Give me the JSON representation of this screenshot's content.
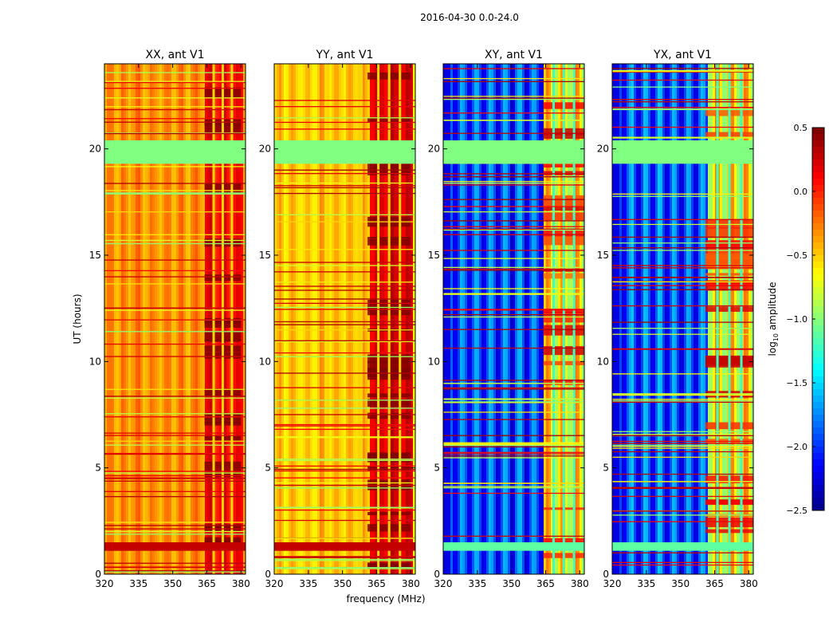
{
  "suptitle": "2016-04-30 0.0-24.0",
  "shared": {
    "ylabel": "UT (hours)",
    "xlabel": "frequency (MHz)",
    "x_ticks": [
      320,
      335,
      350,
      365,
      380
    ],
    "y_ticks": [
      0,
      5,
      10,
      15,
      20
    ],
    "colorbar_ticks": [
      "0.5",
      "0.0",
      "−0.5",
      "−1.0",
      "−1.5",
      "−2.0",
      "−2.5"
    ],
    "colorbar_label_main": "log",
    "colorbar_label_sub": "10",
    "colorbar_label_rest": " amplitude"
  },
  "chart_data": [
    {
      "type": "heatmap",
      "title": "XX, ant V1",
      "xlabel": "",
      "ylabel": "UT (hours)",
      "xlim": [
        320,
        382
      ],
      "ylim": [
        0,
        24
      ],
      "band_lo": 364,
      "band_hi": 380,
      "base_level": -0.3,
      "band_level": 0.1,
      "cross_pol": false,
      "colormap": "jet",
      "clim": [
        -2.5,
        0.5
      ],
      "flagged_ut": [
        [
          19.3,
          20.4
        ]
      ]
    },
    {
      "type": "heatmap",
      "title": "YY, ant V1",
      "xlabel": "frequency (MHz)",
      "ylabel": "",
      "xlim": [
        320,
        382
      ],
      "ylim": [
        0,
        24
      ],
      "band_lo": 361,
      "band_hi": 380,
      "base_level": -0.45,
      "band_level": 0.2,
      "cross_pol": false,
      "colormap": "jet",
      "clim": [
        -2.5,
        0.5
      ],
      "flagged_ut": [
        [
          19.3,
          20.4
        ]
      ]
    },
    {
      "type": "heatmap",
      "title": "XY, ant V1",
      "xlabel": "",
      "ylabel": "",
      "xlim": [
        320,
        382
      ],
      "ylim": [
        0,
        24
      ],
      "band_lo": 364,
      "band_hi": 382,
      "base_level": -1.9,
      "band_level": -0.6,
      "cross_pol": true,
      "colormap": "jet",
      "clim": [
        -2.5,
        0.5
      ],
      "flagged_ut": [
        [
          19.3,
          20.4
        ]
      ]
    },
    {
      "type": "heatmap",
      "title": "YX, ant V1",
      "xlabel": "",
      "ylabel": "",
      "xlim": [
        320,
        382
      ],
      "ylim": [
        0,
        24
      ],
      "band_lo": 361,
      "band_hi": 382,
      "base_level": -1.9,
      "band_level": -0.6,
      "cross_pol": true,
      "colormap": "jet",
      "clim": [
        -2.5,
        0.5
      ],
      "flagged_ut": [
        [
          19.3,
          20.4
        ]
      ]
    }
  ]
}
